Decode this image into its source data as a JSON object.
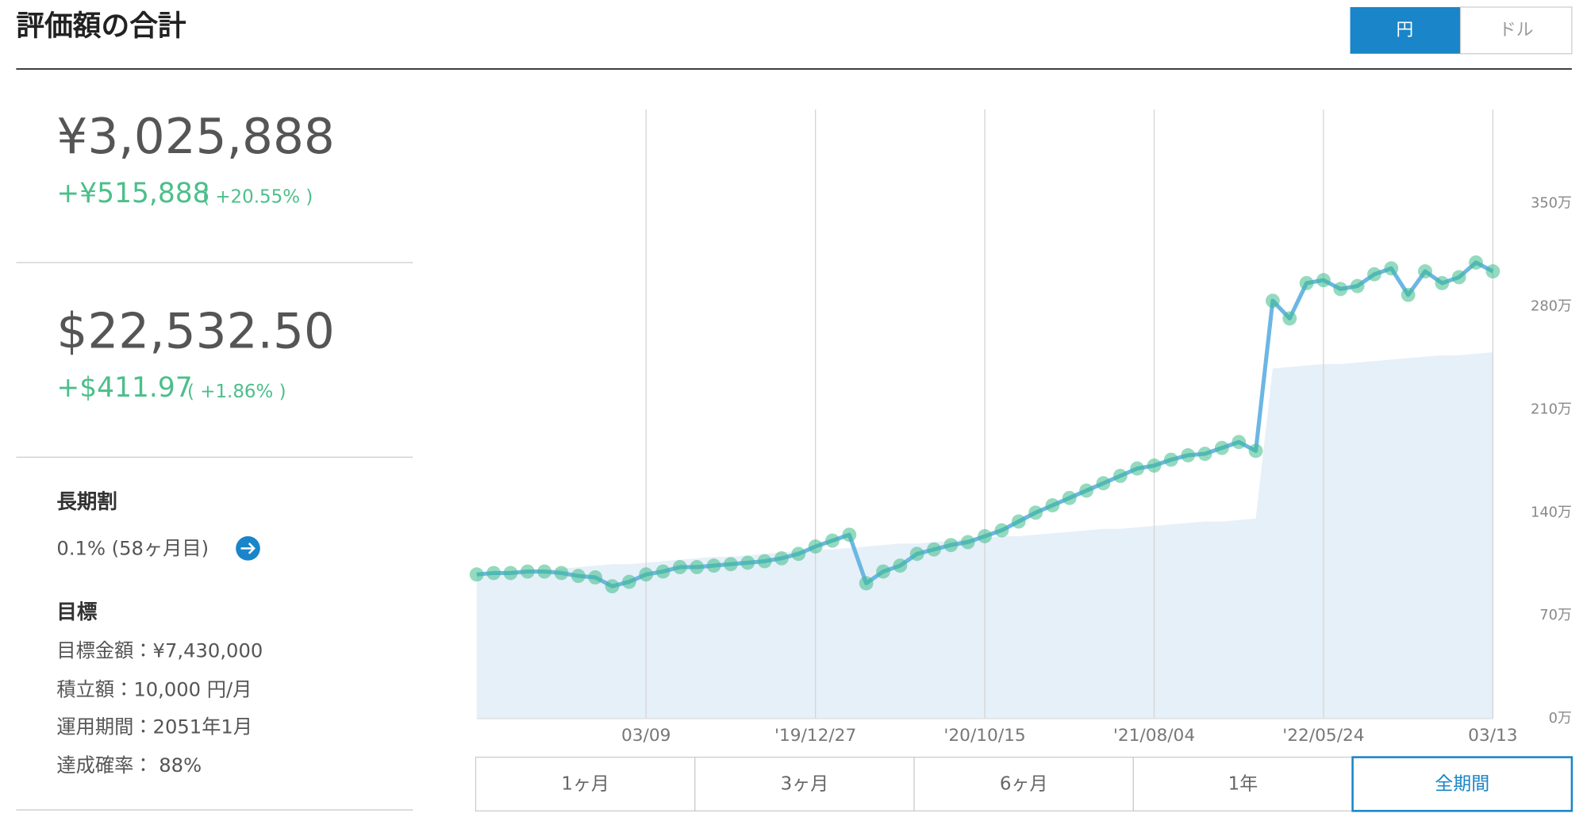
{
  "header": {
    "title": "評価額の合計",
    "currency_toggle": [
      "円",
      "ドル"
    ]
  },
  "summary": {
    "jpy": {
      "total": "¥3,025,888",
      "change": "+¥515,888",
      "change_pct": "( +20.55% )"
    },
    "usd": {
      "total": "$22,532.50",
      "change": "+$411.97",
      "change_pct": "( +1.86% )"
    }
  },
  "long_term_discount": {
    "label": "長期割",
    "value": "0.1% (58ヶ月目)"
  },
  "goal": {
    "label": "目標",
    "items": [
      "目標金額：¥7,430,000",
      "積立額：10,000 円/月",
      "運用期間：2051年1月",
      "達成確率： 88%"
    ]
  },
  "period_buttons": [
    "1ヶ月",
    "3ヶ月",
    "6ヶ月",
    "1年",
    "全期間"
  ],
  "chart_data": {
    "type": "line",
    "categories": [
      null,
      null,
      null,
      null,
      null,
      null,
      null,
      null,
      null,
      null,
      "03/09",
      null,
      null,
      null,
      null,
      null,
      null,
      null,
      null,
      null,
      "'19/12/27",
      null,
      null,
      null,
      null,
      null,
      null,
      null,
      null,
      null,
      "'20/10/15",
      null,
      null,
      null,
      null,
      null,
      null,
      null,
      null,
      null,
      "'21/08/04",
      null,
      null,
      null,
      null,
      null,
      null,
      null,
      null,
      null,
      "'22/05/24",
      null,
      null,
      null,
      null,
      null,
      null,
      null,
      null,
      null,
      "03/13"
    ],
    "series": [
      {
        "color": "#6cb6e4",
        "marker_color": "#3dbb8a",
        "values": [
          98,
          99,
          99,
          100,
          100,
          99,
          97,
          96,
          90,
          93,
          98,
          100,
          103,
          103,
          104,
          105,
          106,
          107,
          109,
          112,
          117,
          121,
          125,
          92,
          100,
          104,
          112,
          115,
          118,
          120,
          124,
          128,
          134,
          140,
          145,
          150,
          155,
          160,
          165,
          170,
          172,
          176,
          179,
          180,
          184,
          188,
          182,
          284,
          272,
          296,
          298,
          292,
          294,
          302,
          306,
          288,
          304,
          296,
          300,
          310,
          304
        ]
      },
      {
        "color": "#e6f0f8",
        "fill": true,
        "values": [
          98,
          99,
          100,
          100,
          101,
          102,
          103,
          104,
          105,
          105,
          106,
          107,
          108,
          109,
          110,
          110,
          111,
          112,
          113,
          114,
          115,
          115,
          116,
          117,
          118,
          119,
          119,
          120,
          121,
          122,
          123,
          124,
          124,
          125,
          126,
          127,
          128,
          129,
          129,
          130,
          131,
          132,
          133,
          134,
          134,
          135,
          136,
          238,
          239,
          240,
          241,
          241,
          242,
          243,
          244,
          245,
          246,
          247,
          247,
          248,
          249
        ]
      }
    ],
    "ylim": [
      0,
      414
    ],
    "yticks": [
      {
        "value": 0,
        "label": "0万"
      },
      {
        "value": 70,
        "label": "70万"
      },
      {
        "value": 140,
        "label": "140万"
      },
      {
        "value": 210,
        "label": "210万"
      },
      {
        "value": 280,
        "label": "280万"
      },
      {
        "value": 350,
        "label": "350万"
      }
    ],
    "grid": true
  }
}
